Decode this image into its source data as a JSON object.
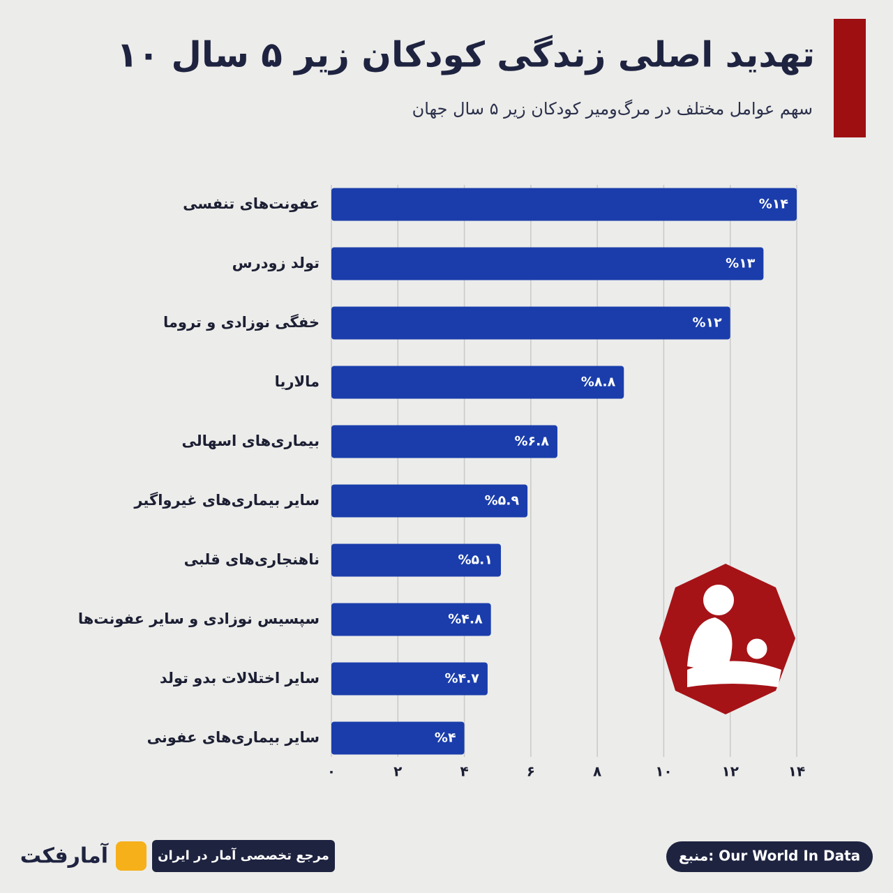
{
  "chart_data": {
    "type": "hbar",
    "title": "۱۰ تهدید اصلی زندگی کودکان زیر ۵ سال",
    "subtitle": "سهم عوامل مختلف در مرگ‌ومیر کودکان زیر ۵ سال جهان",
    "categories": [
      "عفونت‌های تنفسی",
      "تولد زودرس",
      "خفگی نوزادی و تروما",
      "مالاریا",
      "بیماری‌های اسهالی",
      "سایر بیماری‌های غیرواگیر",
      "ناهنجاری‌های قلبی",
      "سپسیس نوزادی و سایر عفونت‌ها",
      "سایر اختلالات بدو تولد",
      "سایر بیماری‌های عفونی"
    ],
    "values": [
      14,
      13,
      12,
      8.8,
      6.8,
      5.9,
      5.1,
      4.8,
      4.7,
      4
    ],
    "value_labels": [
      "%۱۴",
      "%۱۳",
      "%۱۲",
      "%۸.۸",
      "%۶.۸",
      "%۵.۹",
      "%۵.۱",
      "%۴.۸",
      "%۴.۷",
      "%۴"
    ],
    "color": "#1a3dab",
    "xlim": [
      0,
      14
    ],
    "xticks": [
      {
        "value": 0,
        "label": "۰"
      },
      {
        "value": 2,
        "label": "۲"
      },
      {
        "value": 4,
        "label": "۴"
      },
      {
        "value": 6,
        "label": "۶"
      },
      {
        "value": 8,
        "label": "۸"
      },
      {
        "value": 10,
        "label": "۱۰"
      },
      {
        "value": 12,
        "label": "۱۲"
      },
      {
        "value": 14,
        "label": "۱۴"
      }
    ],
    "grid": true,
    "source": "منبع: Our World In Data",
    "tagline": "مرجع تخصصی آمار در ایران",
    "brand": "آمارفکت"
  }
}
